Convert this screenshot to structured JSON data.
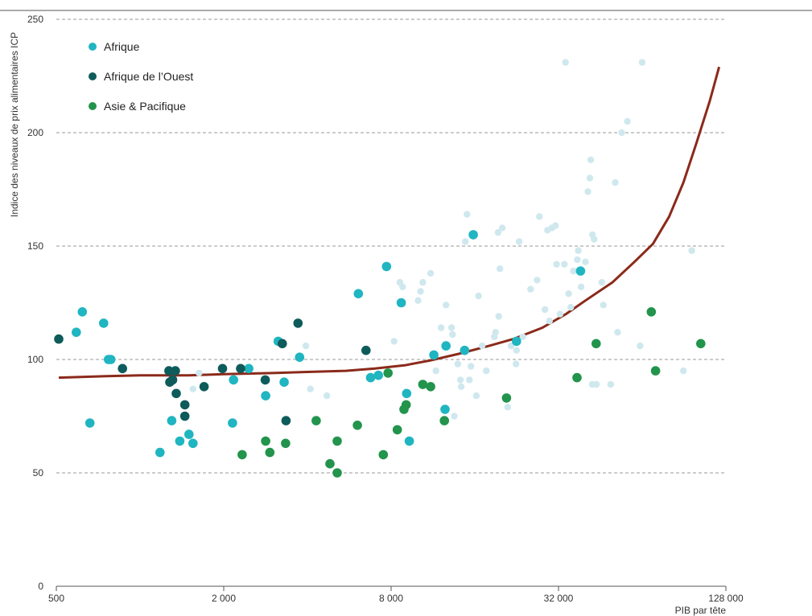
{
  "chart_data": {
    "type": "scatter",
    "title": "",
    "xlabel": "PIB par tête",
    "ylabel": "Indice des niveaux de prix alimentaires ICP",
    "x_scale": "log2",
    "xlim": [
      500,
      128000
    ],
    "ylim": [
      0,
      250
    ],
    "x_ticks": [
      500,
      2000,
      8000,
      32000,
      128000
    ],
    "x_tick_labels": [
      "500",
      "2 000",
      "8 000",
      "32 000",
      "128 000"
    ],
    "y_ticks": [
      0,
      50,
      100,
      150,
      200,
      250
    ],
    "y_tick_labels": [
      "0",
      "50",
      "100",
      "150",
      "200",
      "250"
    ],
    "grid": "horizontal dashed",
    "legend_position": "top-left",
    "series": [
      {
        "name": "Afrique",
        "color": "#1fb5c1",
        "points": [
          [
            590,
            112
          ],
          [
            620,
            121
          ],
          [
            660,
            72
          ],
          [
            740,
            116
          ],
          [
            770,
            100
          ],
          [
            785,
            100
          ],
          [
            1180,
            59
          ],
          [
            1300,
            73
          ],
          [
            1390,
            64
          ],
          [
            1500,
            67
          ],
          [
            1550,
            63
          ],
          [
            2150,
            72
          ],
          [
            2170,
            91
          ],
          [
            2460,
            96
          ],
          [
            2830,
            84
          ],
          [
            3140,
            108
          ],
          [
            3300,
            90
          ],
          [
            3750,
            101
          ],
          [
            6100,
            129
          ],
          [
            6750,
            92
          ],
          [
            7200,
            93
          ],
          [
            7700,
            141
          ],
          [
            8700,
            125
          ],
          [
            9300,
            64
          ],
          [
            9100,
            85
          ],
          [
            11400,
            102
          ],
          [
            12600,
            106
          ],
          [
            12500,
            78
          ],
          [
            14700,
            104
          ],
          [
            15800,
            155
          ],
          [
            22600,
            108
          ],
          [
            38400,
            139
          ]
        ]
      },
      {
        "name": "Afrique de l’Ouest",
        "color": "#0e5b5b",
        "points": [
          [
            510,
            109
          ],
          [
            865,
            96
          ],
          [
            1270,
            95
          ],
          [
            1310,
            91
          ],
          [
            1340,
            95
          ],
          [
            1280,
            90
          ],
          [
            1350,
            85
          ],
          [
            1450,
            80
          ],
          [
            1450,
            75
          ],
          [
            1700,
            88
          ],
          [
            1980,
            96
          ],
          [
            2300,
            96
          ],
          [
            2820,
            91
          ],
          [
            3250,
            107
          ],
          [
            3350,
            73
          ],
          [
            3700,
            116
          ],
          [
            6500,
            104
          ]
        ]
      },
      {
        "name": "Asie & Pacifique",
        "color": "#22944c",
        "points": [
          [
            2330,
            58
          ],
          [
            2830,
            64
          ],
          [
            2930,
            59
          ],
          [
            3340,
            63
          ],
          [
            4300,
            73
          ],
          [
            4820,
            54
          ],
          [
            5120,
            64
          ],
          [
            5120,
            50
          ],
          [
            6050,
            71
          ],
          [
            7500,
            58
          ],
          [
            7800,
            94
          ],
          [
            8420,
            69
          ],
          [
            8900,
            78
          ],
          [
            9060,
            80
          ],
          [
            10400,
            89
          ],
          [
            11100,
            88
          ],
          [
            12440,
            73
          ],
          [
            20800,
            83
          ],
          [
            37300,
            92
          ],
          [
            43700,
            107
          ],
          [
            69000,
            121
          ],
          [
            71500,
            95
          ],
          [
            104000,
            107
          ]
        ]
      },
      {
        "name": "",
        "color": "#cfe8ee",
        "points": [
          [
            1550,
            87
          ],
          [
            1630,
            94
          ],
          [
            3950,
            106
          ],
          [
            4100,
            87
          ],
          [
            4700,
            84
          ],
          [
            8200,
            108
          ],
          [
            8600,
            134
          ],
          [
            8800,
            132
          ],
          [
            10000,
            126
          ],
          [
            10200,
            130
          ],
          [
            10400,
            134
          ],
          [
            11100,
            138
          ],
          [
            11600,
            95
          ],
          [
            12100,
            114
          ],
          [
            12600,
            124
          ],
          [
            13200,
            114
          ],
          [
            13300,
            111
          ],
          [
            13900,
            98
          ],
          [
            14200,
            91
          ],
          [
            14300,
            88
          ],
          [
            14800,
            152
          ],
          [
            15000,
            164
          ],
          [
            15300,
            91
          ],
          [
            16500,
            128
          ],
          [
            17000,
            106
          ],
          [
            16200,
            84
          ],
          [
            18800,
            110
          ],
          [
            19400,
            156
          ],
          [
            19500,
            119
          ],
          [
            19700,
            140
          ],
          [
            20100,
            158
          ],
          [
            21000,
            79
          ],
          [
            21600,
            106
          ],
          [
            22500,
            98
          ],
          [
            22600,
            104
          ],
          [
            23100,
            152
          ],
          [
            23800,
            110
          ],
          [
            25400,
            131
          ],
          [
            26800,
            135
          ],
          [
            27300,
            163
          ],
          [
            28600,
            122
          ],
          [
            29200,
            157
          ],
          [
            29700,
            117
          ],
          [
            30300,
            158
          ],
          [
            31200,
            159
          ],
          [
            31500,
            142
          ],
          [
            32400,
            120
          ],
          [
            33900,
            231
          ],
          [
            33600,
            142
          ],
          [
            34800,
            129
          ],
          [
            35400,
            123
          ],
          [
            36200,
            139
          ],
          [
            37400,
            144
          ],
          [
            37700,
            148
          ],
          [
            38600,
            132
          ],
          [
            40800,
            174
          ],
          [
            41500,
            180
          ],
          [
            41800,
            188
          ],
          [
            42400,
            155
          ],
          [
            43000,
            153
          ],
          [
            42300,
            89
          ],
          [
            43800,
            89
          ],
          [
            45800,
            134
          ],
          [
            46400,
            124
          ],
          [
            49300,
            89
          ],
          [
            51200,
            178
          ],
          [
            52200,
            112
          ],
          [
            54000,
            200
          ],
          [
            56600,
            205
          ],
          [
            62900,
            106
          ],
          [
            64000,
            231
          ],
          [
            90000,
            95
          ],
          [
            96500,
            148
          ],
          [
            40000,
            143
          ],
          [
            19000,
            112
          ],
          [
            17600,
            95
          ],
          [
            13500,
            75
          ],
          [
            15500,
            97
          ]
        ]
      }
    ],
    "trend_line": {
      "name": "",
      "color": "#8b2a1a",
      "points": [
        [
          510,
          92
        ],
        [
          700,
          92.5
        ],
        [
          1000,
          93
        ],
        [
          1500,
          93
        ],
        [
          2000,
          93.5
        ],
        [
          3000,
          94
        ],
        [
          4000,
          94.5
        ],
        [
          5500,
          95
        ],
        [
          7000,
          96
        ],
        [
          9000,
          97.5
        ],
        [
          11000,
          99.5
        ],
        [
          14000,
          102.5
        ],
        [
          18000,
          106
        ],
        [
          22000,
          109
        ],
        [
          28000,
          114
        ],
        [
          34000,
          120
        ],
        [
          40000,
          126
        ],
        [
          50000,
          134
        ],
        [
          60000,
          143
        ],
        [
          70000,
          151
        ],
        [
          80000,
          163
        ],
        [
          90000,
          178
        ],
        [
          100000,
          195
        ],
        [
          112000,
          214
        ],
        [
          121000,
          229
        ]
      ]
    }
  }
}
